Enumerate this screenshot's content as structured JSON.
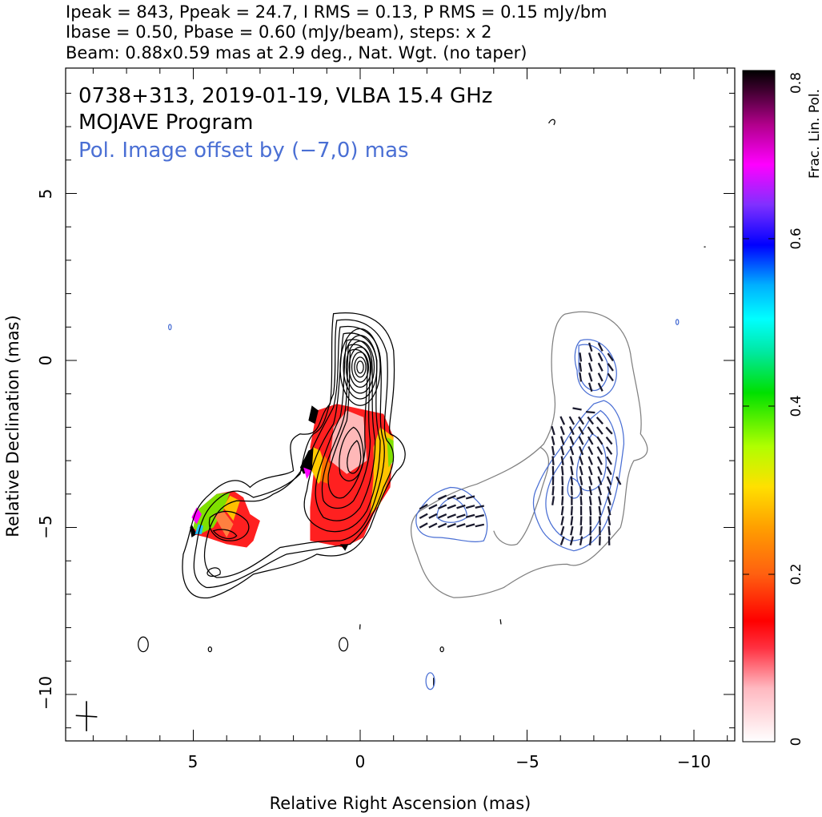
{
  "header": {
    "line1": "Ipeak = 843, Ppeak = 24.7, I RMS = 0.13, P RMS = 0.15 mJy/bm",
    "line2": "Ibase = 0.50, Pbase = 0.60 (mJy/beam), steps: x 2",
    "line3": "Beam: 0.88x0.59 mas at 2.9 deg., Nat. Wgt. (no taper)"
  },
  "chart_data": {
    "type": "contour",
    "annotations": {
      "source_line": "0738+313, 2019-01-19, VLBA 15.4 GHz",
      "program_line": "MOJAVE Program",
      "offset_line": "Pol. Image offset by (−7,0) mas",
      "offset_color": "#4a6fd4"
    },
    "xlabel": "Relative Right Ascension (mas)",
    "ylabel": "Relative Declination (mas)",
    "xlim": [
      9,
      -11.3
    ],
    "ylim": [
      -11.5,
      8.8
    ],
    "x_ticks": [
      5,
      0,
      -5,
      -10
    ],
    "x_tick_labels": [
      "5",
      "0",
      "−5",
      "−10"
    ],
    "y_ticks": [
      5,
      0,
      -5,
      -10
    ],
    "y_tick_labels": [
      "5",
      "0",
      "−5",
      "−10"
    ],
    "colorbar": {
      "label": "Frac. Lin. Pol.",
      "range": [
        0,
        0.8
      ],
      "ticks": [
        0,
        0.2,
        0.4,
        0.6,
        0.8
      ],
      "tick_labels": [
        "0",
        "0.2",
        "0.4",
        "0.6",
        "0.8"
      ]
    },
    "stokes_i_peak_position": [
      0,
      -0.2
    ],
    "offset_mas": [
      -7,
      0
    ],
    "colors": {
      "i_contour": "#000000",
      "pol_contour": "#4a6fd4",
      "pol_total_contour": "#808080",
      "evpa": "#1a1a2e"
    }
  }
}
